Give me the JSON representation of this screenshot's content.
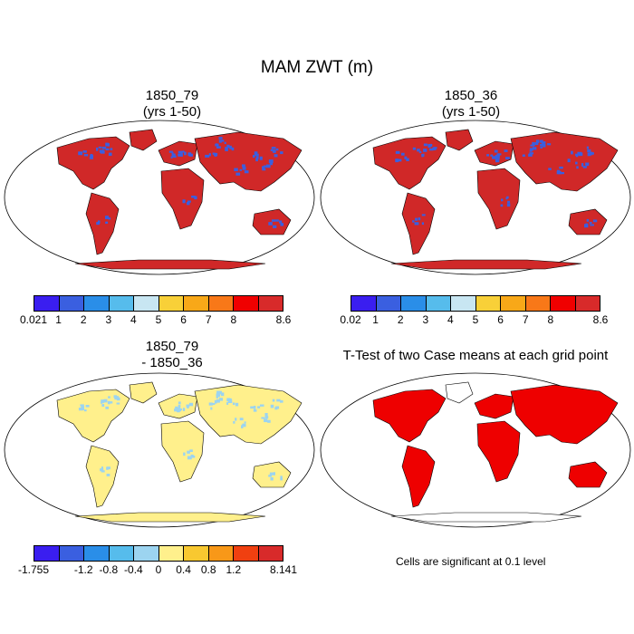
{
  "title": "MAM ZWT (m)",
  "panels": [
    {
      "id": "p1",
      "line1": "1850_79",
      "line2": "(yrs 1-50)"
    },
    {
      "id": "p2",
      "line1": "1850_36",
      "line2": "(yrs 1-50)"
    },
    {
      "id": "p3",
      "line1": "1850_79",
      "line2": "- 1850_36"
    },
    {
      "id": "p4",
      "line1": "T-Test of two Case means at each grid point",
      "line2": ""
    }
  ],
  "colorbars": [
    {
      "id": "cb1",
      "colors": [
        "#3a1ef0",
        "#3a5fe0",
        "#2a8ee8",
        "#56bcec",
        "#c8e6f2",
        "#f8d038",
        "#f8a818",
        "#f87818",
        "#f00000",
        "#d82a2a"
      ],
      "labels": [
        "0.021",
        "1",
        "2",
        "3",
        "4",
        "5",
        "6",
        "7",
        "8",
        "8.6"
      ]
    },
    {
      "id": "cb2",
      "colors": [
        "#3a1ef0",
        "#3a5fe0",
        "#2a8ee8",
        "#56bcec",
        "#c8e6f2",
        "#f8d038",
        "#f8a818",
        "#f87818",
        "#f00000",
        "#d82a2a"
      ],
      "labels": [
        "0.02",
        "1",
        "2",
        "3",
        "4",
        "5",
        "6",
        "7",
        "8",
        "8.6"
      ]
    },
    {
      "id": "cb3",
      "colors": [
        "#3a1ef0",
        "#3a5fe0",
        "#2a8ee8",
        "#56bcec",
        "#9cd4f0",
        "#fff08c",
        "#f8c830",
        "#f89818",
        "#f04010",
        "#d82a2a"
      ],
      "labels": [
        "-1.755",
        "-1.2",
        "-0.8",
        "-0.4",
        "0",
        "0.4",
        "0.8",
        "1.2",
        "8.141"
      ]
    }
  ],
  "note": "Cells are significant at 0.1 level",
  "map_fill": {
    "p1": "#d02828",
    "p2": "#d02828",
    "p3": "#fff08c",
    "p4": "#ee0000"
  }
}
